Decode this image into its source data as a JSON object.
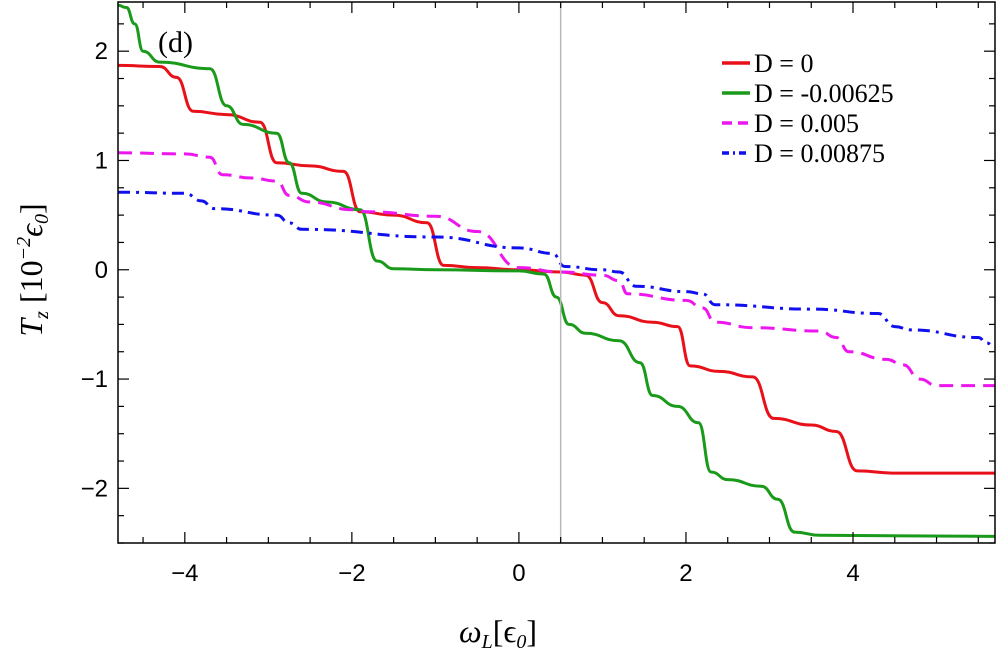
{
  "chart_data": {
    "type": "line",
    "panel_label": "(d)",
    "xlabel_parts": {
      "sym": "ω",
      "sub": "L",
      "unit": "[ϵ",
      "unit_sub": "0",
      "close": "]"
    },
    "ylabel_parts": {
      "sym": "T",
      "sub": "z",
      "open": "[10",
      "exp": "−2",
      "eps": "ϵ",
      "eps_sub": "0",
      "close": "]"
    },
    "xlim": [
      -4.8,
      5.7
    ],
    "ylim": [
      -2.5,
      2.45
    ],
    "x_ticks": [
      -4,
      -2,
      0,
      2,
      4
    ],
    "x_tick_labels": [
      "−4",
      "−2",
      "0",
      "2",
      "4"
    ],
    "y_ticks": [
      -2,
      -1,
      0,
      1,
      2
    ],
    "y_tick_labels": [
      "−2",
      "−1",
      "0",
      "1",
      "2"
    ],
    "vertical_marker_x": 0.5,
    "legend_position": "top-right",
    "grid": false,
    "series": [
      {
        "name": "D = 0",
        "color": "#e8111a",
        "dash": "solid",
        "values_at": [
          [
            -4.8,
            1.87
          ],
          [
            -4.3,
            1.86
          ],
          [
            -4.1,
            1.76
          ],
          [
            -3.9,
            1.45
          ],
          [
            -3.5,
            1.42
          ],
          [
            -3.1,
            1.35
          ],
          [
            -2.9,
            0.98
          ],
          [
            -2.5,
            0.95
          ],
          [
            -2.1,
            0.9
          ],
          [
            -1.9,
            0.53
          ],
          [
            -1.5,
            0.5
          ],
          [
            -1.1,
            0.43
          ],
          [
            -0.9,
            0.04
          ],
          [
            -0.5,
            0.02
          ],
          [
            0.0,
            0.0
          ],
          [
            0.5,
            -0.02
          ],
          [
            0.8,
            -0.05
          ],
          [
            1.0,
            -0.3
          ],
          [
            1.2,
            -0.42
          ],
          [
            1.6,
            -0.48
          ],
          [
            1.9,
            -0.52
          ],
          [
            2.05,
            -0.88
          ],
          [
            2.4,
            -0.93
          ],
          [
            2.8,
            -0.98
          ],
          [
            3.05,
            -1.36
          ],
          [
            3.5,
            -1.42
          ],
          [
            3.8,
            -1.48
          ],
          [
            4.05,
            -1.84
          ],
          [
            4.5,
            -1.86
          ],
          [
            5.7,
            -1.86
          ]
        ]
      },
      {
        "name": "D = -0.00625",
        "color": "#1a9a1a",
        "dash": "solid",
        "values_at": [
          [
            -4.8,
            2.42
          ],
          [
            -4.7,
            2.4
          ],
          [
            -4.6,
            2.25
          ],
          [
            -4.5,
            2.0
          ],
          [
            -4.3,
            1.9
          ],
          [
            -3.7,
            1.84
          ],
          [
            -3.5,
            1.5
          ],
          [
            -3.3,
            1.33
          ],
          [
            -2.9,
            1.25
          ],
          [
            -2.75,
            0.98
          ],
          [
            -2.6,
            0.7
          ],
          [
            -2.3,
            0.62
          ],
          [
            -1.9,
            0.55
          ],
          [
            -1.7,
            0.08
          ],
          [
            -1.5,
            0.01
          ],
          [
            -1.0,
            0.0
          ],
          [
            0.0,
            -0.01
          ],
          [
            0.3,
            -0.04
          ],
          [
            0.45,
            -0.25
          ],
          [
            0.6,
            -0.5
          ],
          [
            0.8,
            -0.58
          ],
          [
            1.2,
            -0.65
          ],
          [
            1.45,
            -0.85
          ],
          [
            1.6,
            -1.15
          ],
          [
            1.9,
            -1.25
          ],
          [
            2.15,
            -1.4
          ],
          [
            2.3,
            -1.85
          ],
          [
            2.5,
            -1.92
          ],
          [
            2.9,
            -1.98
          ],
          [
            3.1,
            -2.1
          ],
          [
            3.3,
            -2.4
          ],
          [
            3.6,
            -2.43
          ],
          [
            5.7,
            -2.44
          ]
        ]
      },
      {
        "name": "D = 0.005",
        "color": "#ee16ee",
        "dash": "dashed",
        "values_at": [
          [
            -4.8,
            1.07
          ],
          [
            -4.0,
            1.06
          ],
          [
            -3.7,
            1.03
          ],
          [
            -3.55,
            0.87
          ],
          [
            -3.2,
            0.84
          ],
          [
            -2.9,
            0.81
          ],
          [
            -2.75,
            0.68
          ],
          [
            -2.5,
            0.62
          ],
          [
            -2.0,
            0.55
          ],
          [
            -1.8,
            0.53
          ],
          [
            -1.0,
            0.49
          ],
          [
            -0.5,
            0.35
          ],
          [
            0.0,
            0.02
          ],
          [
            0.5,
            -0.02
          ],
          [
            1.0,
            -0.05
          ],
          [
            1.2,
            -0.1
          ],
          [
            1.3,
            -0.22
          ],
          [
            2.0,
            -0.28
          ],
          [
            2.2,
            -0.35
          ],
          [
            2.35,
            -0.48
          ],
          [
            2.8,
            -0.53
          ],
          [
            3.6,
            -0.56
          ],
          [
            3.8,
            -0.62
          ],
          [
            3.95,
            -0.75
          ],
          [
            4.4,
            -0.82
          ],
          [
            4.6,
            -0.87
          ],
          [
            4.8,
            -1.0
          ],
          [
            5.0,
            -1.06
          ],
          [
            5.7,
            -1.06
          ]
        ]
      },
      {
        "name": "D = 0.00875",
        "color": "#1010ee",
        "dash": "dashdot",
        "values_at": [
          [
            -4.8,
            0.71
          ],
          [
            -4.0,
            0.7
          ],
          [
            -3.8,
            0.63
          ],
          [
            -3.65,
            0.56
          ],
          [
            -2.9,
            0.5
          ],
          [
            -2.75,
            0.43
          ],
          [
            -2.6,
            0.37
          ],
          [
            -1.0,
            0.3
          ],
          [
            0.0,
            0.2
          ],
          [
            0.4,
            0.15
          ],
          [
            0.55,
            0.03
          ],
          [
            1.0,
            0.0
          ],
          [
            1.2,
            -0.02
          ],
          [
            1.4,
            -0.15
          ],
          [
            2.0,
            -0.2
          ],
          [
            2.2,
            -0.22
          ],
          [
            2.35,
            -0.32
          ],
          [
            3.5,
            -0.36
          ],
          [
            4.3,
            -0.4
          ],
          [
            4.5,
            -0.52
          ],
          [
            4.7,
            -0.55
          ],
          [
            5.5,
            -0.62
          ],
          [
            5.6,
            -0.67
          ],
          [
            5.7,
            -0.71
          ]
        ]
      }
    ]
  }
}
